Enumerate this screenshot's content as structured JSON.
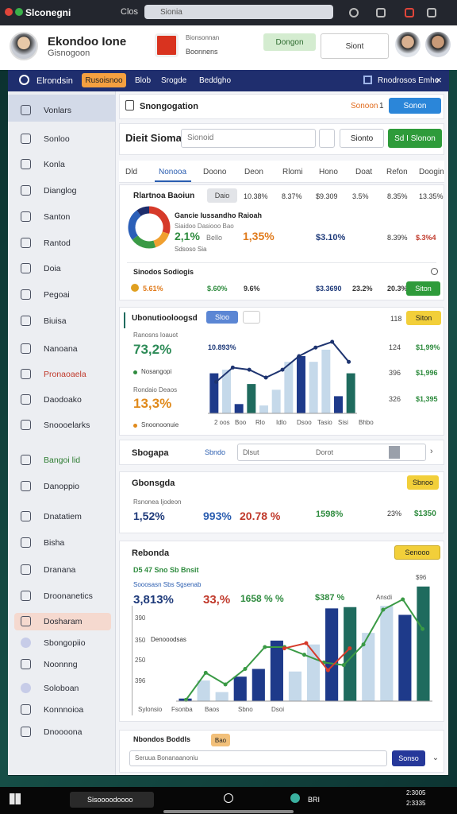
{
  "browser": {
    "tab": "Slconegni",
    "nav": "Clos",
    "address": "Sionia"
  },
  "profile": {
    "name": "Ekondoo Ione",
    "handle": "Gisnogoon",
    "brand": [
      "Bionsonnan",
      "Boonnens"
    ],
    "button": "Dongon",
    "button2": "Siont"
  },
  "appbar": {
    "title": "Elrondsin",
    "tabs": [
      "Rusoisnoo",
      "Blob",
      "Srogde",
      "Beddgho"
    ],
    "right": "Rnodrosos Emhe"
  },
  "sidebar": [
    "Vonlars",
    "Sonloo",
    "Konla",
    "Dianglog",
    "Santon",
    "Rantod",
    "Doia",
    "Pegoai",
    "Biuisa",
    "Nanoana",
    "Pronaoaela",
    "Daodoako",
    "Snoooelarks",
    "Bangoi lid",
    "Danoppio",
    "Dnatatiem",
    "Bisha",
    "Dranana",
    "Droonanetics",
    "Dosharam",
    "Sbongopiio",
    "Noonnng",
    "Soloboan",
    "Konnnoioa",
    "Dnoooona"
  ],
  "header": {
    "title": "Snongogation",
    "status": "Sonoon",
    "count": 1,
    "button": "Sonon"
  },
  "search": {
    "title": "Dieit Sioma",
    "placeholder": "Sionoid",
    "button": "Sionto",
    "primary": "Sd I Slonon"
  },
  "tabs": [
    "Dld",
    "Nonooa",
    "Doono",
    "Deon",
    "Rlomi",
    "Hono",
    "Doat",
    "Refon",
    "Doogin"
  ],
  "summary": {
    "title": "Rlartnoa Baoiun",
    "chip": "Daio",
    "row": [
      "10.38%",
      "8.37%",
      "$9.309",
      "3.5%",
      "8.35%",
      "13.35%"
    ],
    "donut": {
      "values": [
        30,
        15,
        20,
        25,
        10
      ],
      "colors": [
        "#d63a2a",
        "#f0a030",
        "#3a9a45",
        "#2b5fb8",
        "#1e2d6b"
      ]
    },
    "legend_title": "Gancie Iussandho Raioah",
    "legend_sub": "Siaidoo Dasiooo Bao",
    "stats": [
      "2,1%",
      "Bello",
      "1,35%",
      "$3.10%",
      "8.39%",
      "$.3%4"
    ],
    "foot": "Sdsoso Sia",
    "sub_title": "Sinodos Sodiogis",
    "sub_row": [
      "5.61%",
      "$.60%",
      "9.6%",
      "$3.3690",
      "23.2%",
      "20.3%"
    ],
    "button": "Siton"
  },
  "trend": {
    "title": "Ubonutiooloogsd",
    "button": "Sloo",
    "count": 118,
    "badge": "Siton",
    "label1": "Ranosns Ioauot",
    "value1": "73,2%",
    "legend1": "Nosangopi",
    "label2": "Rondaio Deaos",
    "value2": "13,3%",
    "legend2": "Snoonoonuie",
    "chart": {
      "ylim": [
        0,
        100
      ],
      "bars": {
        "values": [
          56,
          61,
          13,
          41,
          11,
          33,
          72,
          80,
          72,
          89,
          24,
          56
        ],
        "colors": [
          "#1e3a8a",
          "#c5d9ea",
          "#1e3a8a",
          "#1f6b5e",
          "#c5d9ea",
          "#c5d9ea",
          "#c5d9ea",
          "#1e3a8a",
          "#c5d9ea",
          "#c5d9ea",
          "#1e3a8a",
          "#1f6b5e"
        ]
      },
      "line": {
        "color": "#1e3470",
        "values": [
          44,
          64,
          61,
          50,
          61,
          80,
          92,
          100,
          72
        ]
      },
      "side_label": "10.893%",
      "axis_labels": [
        124,
        396,
        326
      ],
      "right": [
        "$1,99%",
        "$1,996",
        "$1,395"
      ],
      "x_labels": [
        "2 oos",
        "Boo",
        "Rlo",
        "Idlo",
        "Dsoo",
        "Tasio",
        "Sisi",
        "Bhbo"
      ]
    }
  },
  "filter": {
    "title": "Sbogapa",
    "link": "Sbndo",
    "input": "Dlsut",
    "input_right": "Dorot"
  },
  "overview": {
    "title": "Gbonsgda",
    "button": "Sbnoo",
    "label": "Rsnonea Ijodeon",
    "values": [
      "1,52%",
      "993%",
      "20.78 %",
      "1598%",
      "23%",
      "$1350"
    ]
  },
  "report": {
    "title": "Rebonda",
    "button": "Senooo",
    "line1": "D5 47 Sno Sb Bnsit",
    "line2": "Sooosasn Sbs Sgsenab",
    "values": [
      "3,813%",
      "33,%",
      "1658 % %",
      "$387 %"
    ],
    "note": "Ansdi",
    "chart": {
      "ylim": [
        0,
        100
      ],
      "bars": {
        "values": [
          2,
          16,
          7,
          19,
          25,
          47,
          23,
          44,
          72,
          73,
          53,
          74,
          67,
          89
        ],
        "colors": [
          "#1e3a8a",
          "#c5d9ea",
          "#c5d9ea",
          "#1e3a8a",
          "#1e3a8a",
          "#1e3a8a",
          "#c5d9ea",
          "#c5d9ea",
          "#1e3a8a",
          "#1f6b5e",
          "#c5d9ea",
          "#c5d9ea",
          "#1e3a8a",
          "#1f6b5e"
        ]
      },
      "line": {
        "color": "#3a9a45",
        "values": [
          1,
          22,
          13,
          25,
          42,
          42,
          36,
          30,
          28,
          44,
          71,
          79,
          56
        ]
      },
      "line2": {
        "color": "#d63a2a",
        "values": [
          41,
          45,
          24,
          41
        ]
      },
      "y_labels": [
        390,
        350,
        250,
        396
      ],
      "tag": "Denooodsas",
      "marker": "$96",
      "x_labels": [
        "Sylonsio",
        "Fsonba",
        "Baos",
        "Sbno",
        "Dsoi"
      ]
    }
  },
  "footer": {
    "title": "Nbondos Boddls",
    "chip": "Bao",
    "input": "Seruua Bonanaanoniu",
    "button": "Sonso"
  },
  "taskbar": {
    "app": "Sisoooodoooo",
    "tray": "BRI",
    "clock": [
      "2:3005",
      "2:3335"
    ]
  }
}
